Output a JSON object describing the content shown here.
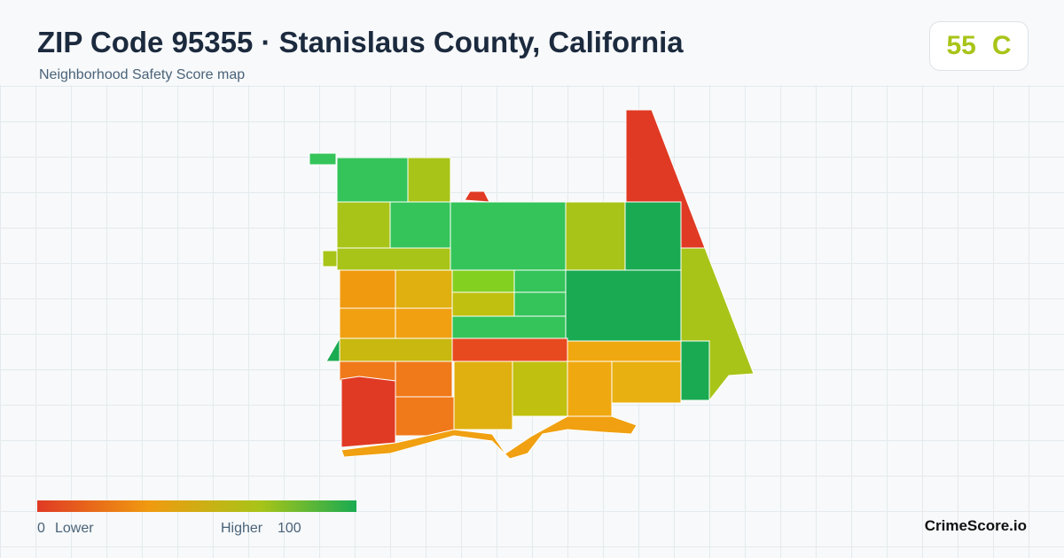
{
  "header": {
    "title": "ZIP Code 95355 · Stanislaus County, California",
    "subtitle": "Neighborhood Safety Score map"
  },
  "score": {
    "value": 55,
    "grade": "C"
  },
  "legend": {
    "min": 0,
    "min_label": "Lower",
    "max_label": "Higher",
    "max": 100
  },
  "brand": "CrimeScore.io"
}
